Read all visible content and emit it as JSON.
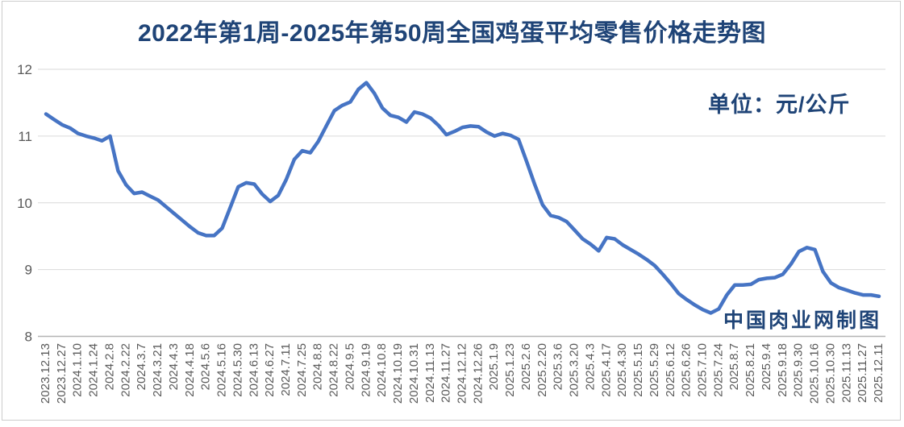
{
  "page": {
    "title": "2022年第1周-2025年第50周全国鸡蛋平均零售价格走势图",
    "unit_label": "单位：元/公斤",
    "credit": "中国肉业网制图"
  },
  "colors": {
    "title_text": "#1f4477",
    "line": "#4674c4",
    "axis_text": "#595959",
    "gridline": "#d9d9d9",
    "axis_line": "#b3b3b3",
    "frame_border": "#cccccc"
  },
  "chart_data": {
    "type": "line",
    "title": "2022年第1周-2025年第50周全国鸡蛋平均零售价格走势图",
    "unit": "元/公斤",
    "ylim": [
      8,
      12
    ],
    "y_ticks": [
      8,
      9,
      10,
      11,
      12
    ],
    "grid": "horizontal",
    "legend": "none",
    "points_per_label": 2,
    "x_tick_labels": [
      "2023.12.13",
      "2023.12.27",
      "2024.1.10",
      "2024.1.24",
      "2024.2.8",
      "2024.2.22",
      "2024.3.7",
      "2024.3.21",
      "2024.4.3",
      "2024.4.18",
      "2024.5.6",
      "2024.5.16",
      "2024.5.30",
      "2024.6.13",
      "2024.6.27",
      "2024.7.11",
      "2024.7.25",
      "2024.8.8",
      "2024.8.22",
      "2024.9.5",
      "2024.9.19",
      "2024.10.8",
      "2024.10.19",
      "2024.10.31",
      "2024.11.13",
      "2024.11.27",
      "2024.12.12",
      "2024.12.26",
      "2025.1.9",
      "2025.1.23",
      "2025.2.6",
      "2025.2.20",
      "2025.3.6",
      "2025.3.20",
      "2025.4.3",
      "2025.4.17",
      "2025.4.30",
      "2025.5.15",
      "2025.5.29",
      "2025.6.12",
      "2025.6.26",
      "2025.7.10",
      "2025.7.24",
      "2025.8.7",
      "2025.8.21",
      "2025.9.4",
      "2025.9.18",
      "2025.9.30",
      "2025.10.16",
      "2025.10.30",
      "2025.11.13",
      "2025.11.27",
      "2025.12.11"
    ],
    "values": [
      11.33,
      11.25,
      11.17,
      11.12,
      11.04,
      11.0,
      10.97,
      10.93,
      11.0,
      10.48,
      10.27,
      10.14,
      10.16,
      10.1,
      10.04,
      9.94,
      9.84,
      9.74,
      9.64,
      9.55,
      9.51,
      9.51,
      9.62,
      9.93,
      10.24,
      10.3,
      10.28,
      10.13,
      10.02,
      10.11,
      10.35,
      10.65,
      10.78,
      10.75,
      10.92,
      11.15,
      11.38,
      11.46,
      11.51,
      11.7,
      11.8,
      11.64,
      11.42,
      11.31,
      11.28,
      11.21,
      11.36,
      11.33,
      11.27,
      11.16,
      11.02,
      11.07,
      11.13,
      11.15,
      11.14,
      11.06,
      11.0,
      11.04,
      11.01,
      10.95,
      10.62,
      10.28,
      9.97,
      9.81,
      9.78,
      9.72,
      9.59,
      9.46,
      9.38,
      9.28,
      9.48,
      9.46,
      9.37,
      9.3,
      9.23,
      9.15,
      9.06,
      8.93,
      8.79,
      8.64,
      8.55,
      8.47,
      8.4,
      8.35,
      8.41,
      8.62,
      8.77,
      8.77,
      8.78,
      8.85,
      8.87,
      8.88,
      8.93,
      9.08,
      9.27,
      9.33,
      9.3,
      8.97,
      8.8,
      8.73,
      8.69,
      8.65,
      8.62,
      8.62,
      8.6
    ]
  }
}
